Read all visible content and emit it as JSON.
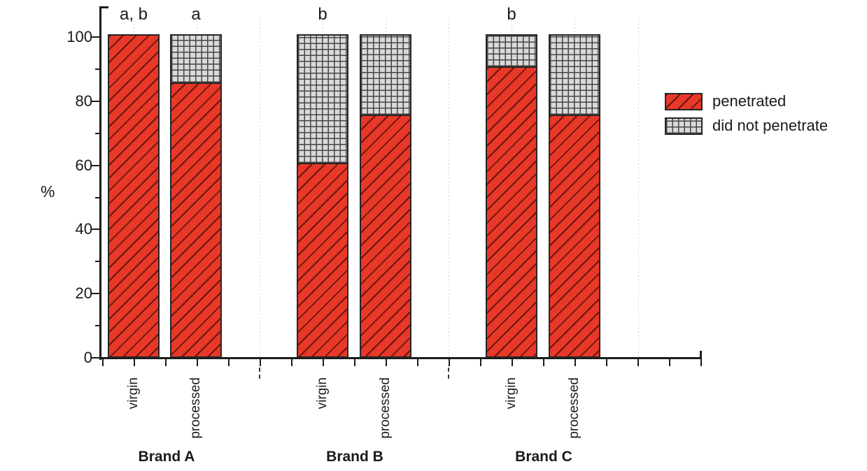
{
  "chart_data": {
    "type": "bar",
    "stacked": true,
    "title": "",
    "xlabel": "",
    "ylabel": "%",
    "ylim": [
      0,
      110
    ],
    "grid": "faint dotted vertical gridlines",
    "legend_position": "right of plot",
    "yticks_major": [
      0,
      20,
      40,
      60,
      80,
      100
    ],
    "yticks_minor": [
      10,
      30,
      50,
      70,
      90
    ],
    "group_labels": [
      "Brand A",
      "Brand B",
      "Brand C"
    ],
    "categories": [
      "virgin",
      "processed",
      "virgin",
      "processed",
      "virgin",
      "processed"
    ],
    "series": [
      {
        "name": "penetrated",
        "color": "#e83828",
        "pattern": "diagonal-hatch",
        "values": [
          100,
          85,
          60,
          75,
          90,
          75
        ]
      },
      {
        "name": "did not penetrate",
        "color": "#d9d9d9",
        "pattern": "crosshatch",
        "values": [
          0,
          15,
          40,
          25,
          10,
          25
        ]
      }
    ],
    "annotations": [
      "a, b",
      "a",
      "b",
      "",
      "b",
      ""
    ]
  },
  "colors": {
    "bar_red": "#e83828",
    "bar_gray": "#d9d9d9",
    "bar_outline": "#262626",
    "axis": "#1c1c1c",
    "text": "#1a1a1a",
    "gridline": "#d3d3e2"
  }
}
